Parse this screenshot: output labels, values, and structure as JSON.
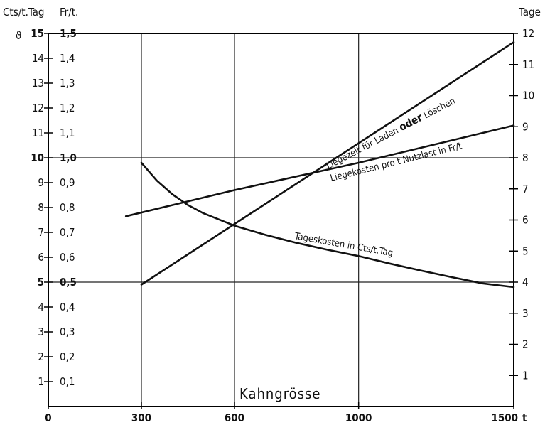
{
  "chart_data": {
    "type": "line",
    "xlabel": "Kahngrösse",
    "x_unit": "t",
    "xlim": [
      0,
      1500
    ],
    "x_ticks": [
      {
        "value": 0,
        "label": "0"
      },
      {
        "value": 300,
        "label": "300"
      },
      {
        "value": 600,
        "label": "600"
      },
      {
        "value": 1000,
        "label": "1000"
      },
      {
        "value": 1500,
        "label": "1500"
      }
    ],
    "left_axes": {
      "cts": {
        "title": "Cts/t.Tag",
        "symbol": "ϑ",
        "range": [
          0,
          15
        ],
        "labels": [
          "1",
          "2",
          "3",
          "4",
          "5",
          "6",
          "7",
          "8",
          "9",
          "10",
          "11",
          "12",
          "13",
          "14",
          "15"
        ]
      },
      "fr": {
        "title": "Fr/t.",
        "range": [
          0,
          1.5
        ],
        "labels": [
          "0,1",
          "0,2",
          "0,3",
          "0,4",
          "0,5",
          "0,6",
          "0,7",
          "0,8",
          "0,9",
          "1,0",
          "1,1",
          "1,2",
          "1,3",
          "1,4",
          "1,5"
        ]
      }
    },
    "right_axis": {
      "title": "Tage",
      "range": [
        0,
        12
      ],
      "labels": [
        "1",
        "2",
        "3",
        "4",
        "5",
        "6",
        "7",
        "8",
        "9",
        "10",
        "11",
        "12"
      ]
    },
    "grid": true,
    "grid_x": [
      300,
      600,
      1000
    ],
    "grid_y_cts": [
      5,
      10
    ],
    "series": [
      {
        "name": "Liegezeit für Laden oder Löschen",
        "axis": "Tage",
        "x": [
          300,
          1500
        ],
        "y": [
          3.92,
          11.72
        ]
      },
      {
        "name": "Liegekosten pro t Nutzlast in Fr/t",
        "axis": "Fr/t.",
        "x": [
          250,
          600,
          1000,
          1500
        ],
        "y": [
          0.765,
          0.87,
          0.98,
          1.13
        ]
      },
      {
        "name": "Tageskosten in Cts/t.Tag",
        "axis": "Cts/t.Tag",
        "x": [
          300,
          350,
          400,
          450,
          500,
          600,
          700,
          800,
          900,
          1000,
          1100,
          1200,
          1300,
          1400,
          1500
        ],
        "y": [
          9.8,
          9.08,
          8.53,
          8.1,
          7.77,
          7.27,
          6.9,
          6.58,
          6.3,
          6.05,
          5.75,
          5.47,
          5.2,
          4.95,
          4.8
        ]
      }
    ],
    "label_parts": {
      "liegezeit_a": "Liegezeit für Laden ",
      "liegezeit_b": "oder",
      "liegezeit_c": " Löschen",
      "liegekosten": "Liegekosten pro t Nutzlast in Fr/t",
      "tageskosten": "Tageskosten in Cts/t.Tag"
    }
  }
}
